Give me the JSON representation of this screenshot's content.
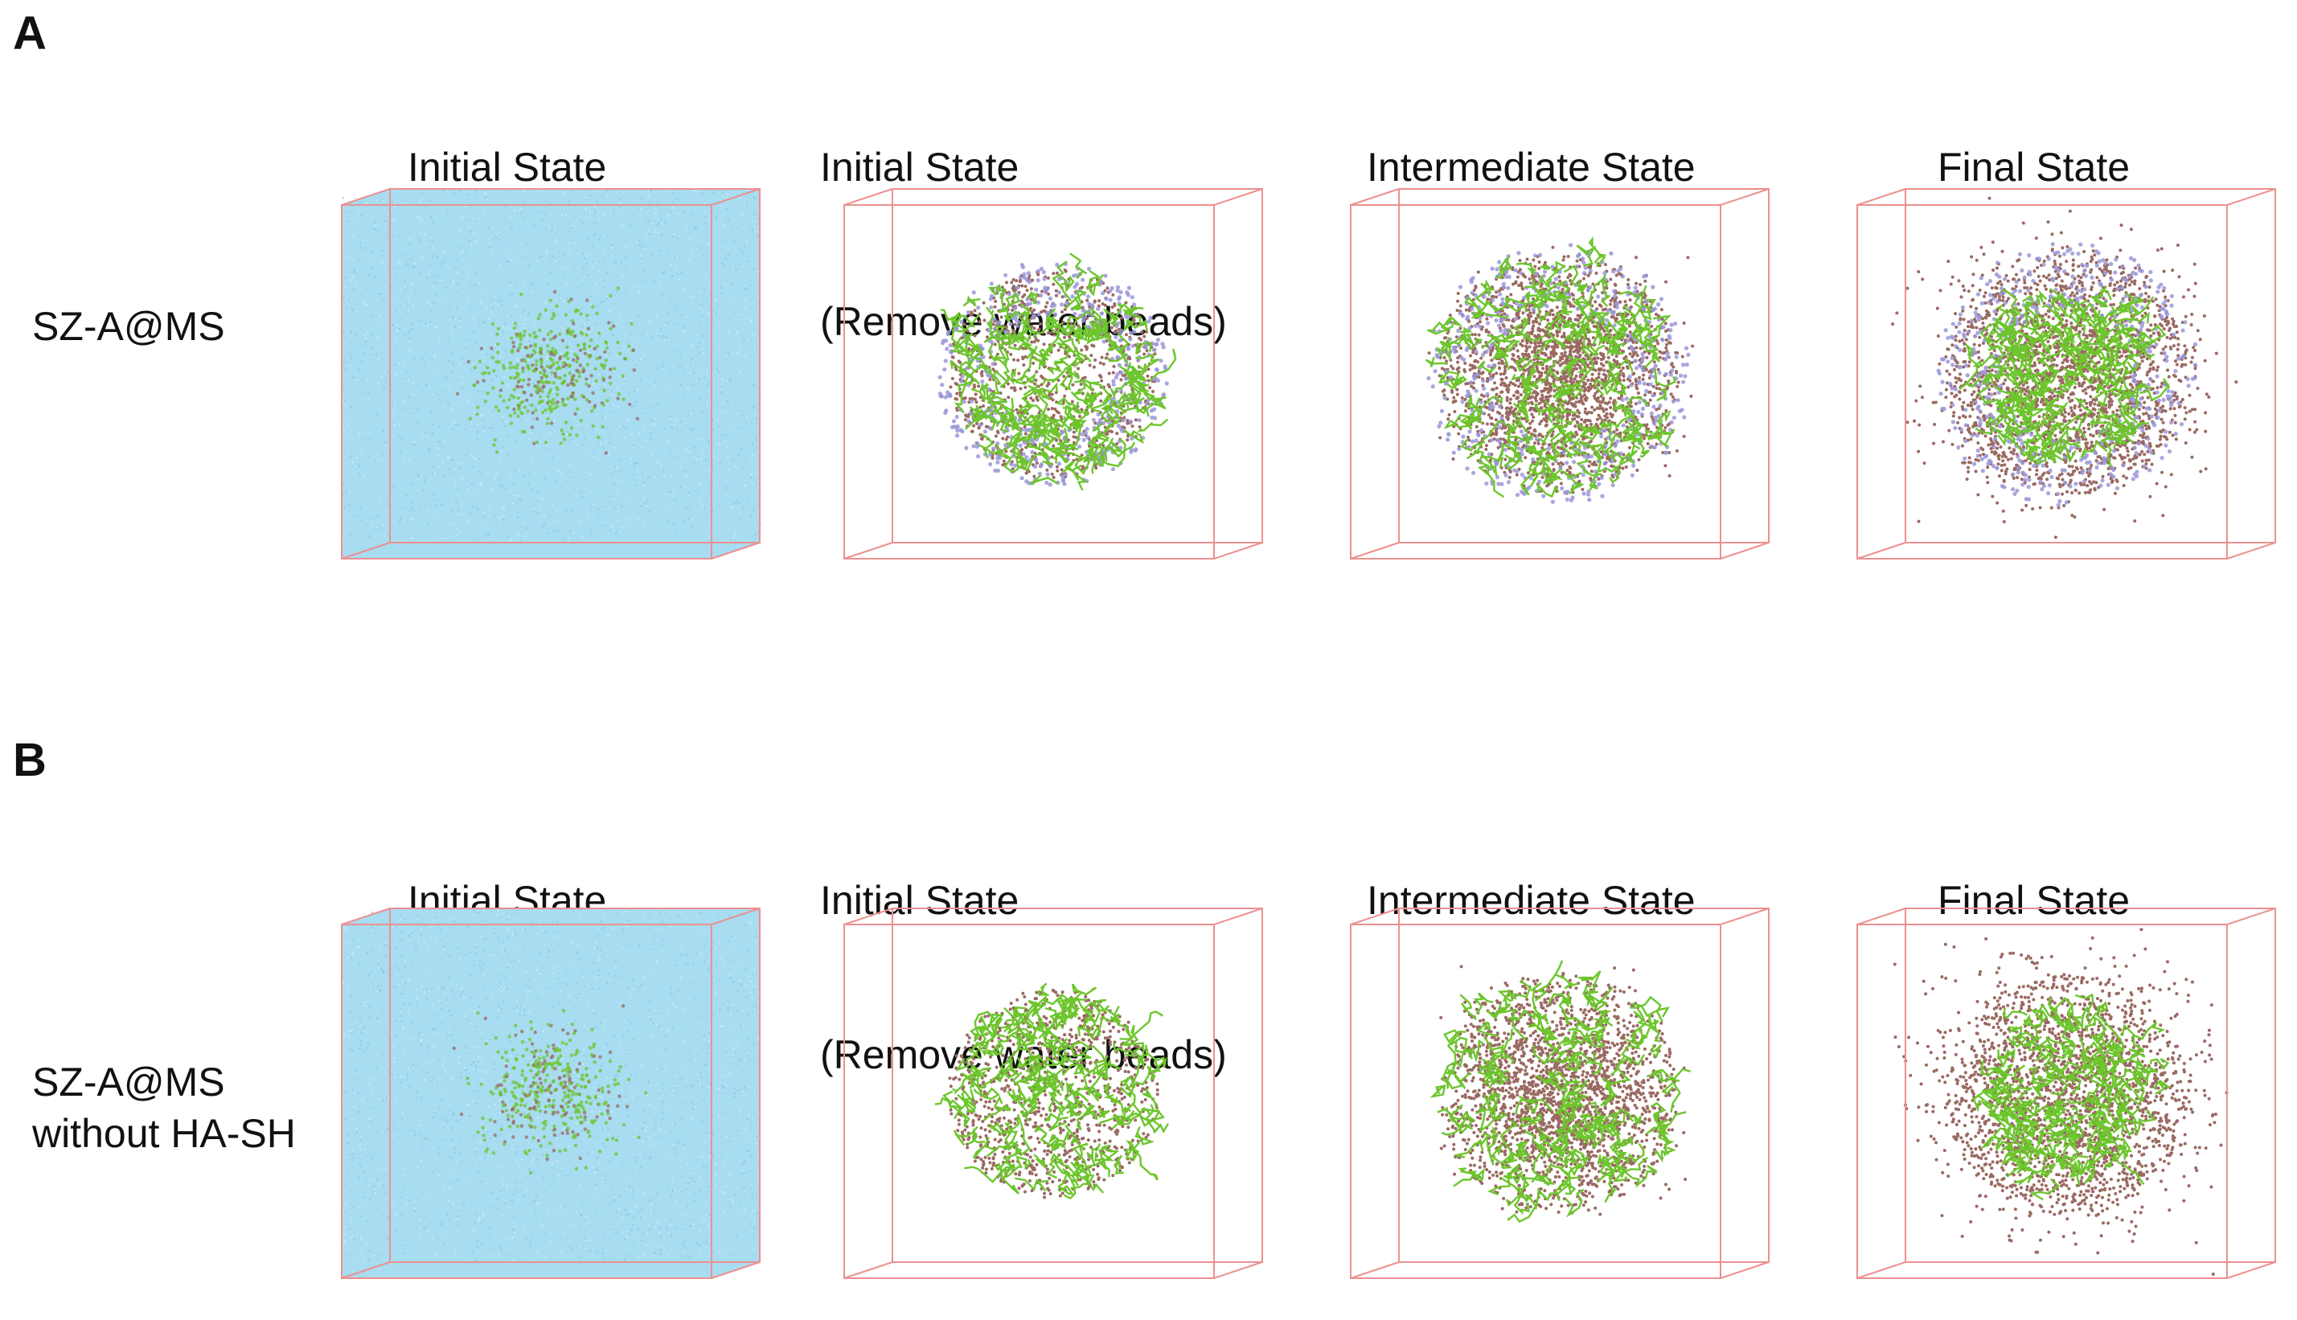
{
  "figure": {
    "panels": [
      {
        "letter": "A",
        "row_label": [
          "SZ-A@MS"
        ],
        "columns": [
          {
            "title": [
              "Initial State"
            ],
            "state": "water"
          },
          {
            "title": [
              "Initial State",
              "(Remove water beads)"
            ],
            "state": "initial",
            "purple": true
          },
          {
            "title": [
              "Intermediate State"
            ],
            "state": "intermediate",
            "purple": true
          },
          {
            "title": [
              "Final State"
            ],
            "state": "final",
            "purple": true
          }
        ]
      },
      {
        "letter": "B",
        "row_label": [
          "SZ-A@MS",
          "without HA-SH"
        ],
        "columns": [
          {
            "title": [
              "Initial State"
            ],
            "state": "water"
          },
          {
            "title": [
              "Initial State",
              "(Remove water beads)"
            ],
            "state": "initial",
            "purple": false
          },
          {
            "title": [
              "Intermediate State"
            ],
            "state": "intermediate",
            "purple": false
          },
          {
            "title": [
              "Final State"
            ],
            "state": "final",
            "purple": false
          }
        ]
      }
    ]
  },
  "colors": {
    "water": "#a8dcf0",
    "box_edge": "#ec9090",
    "green": "#6cc62c",
    "brown": "#9a6a62",
    "purple": "#9a96d8"
  }
}
